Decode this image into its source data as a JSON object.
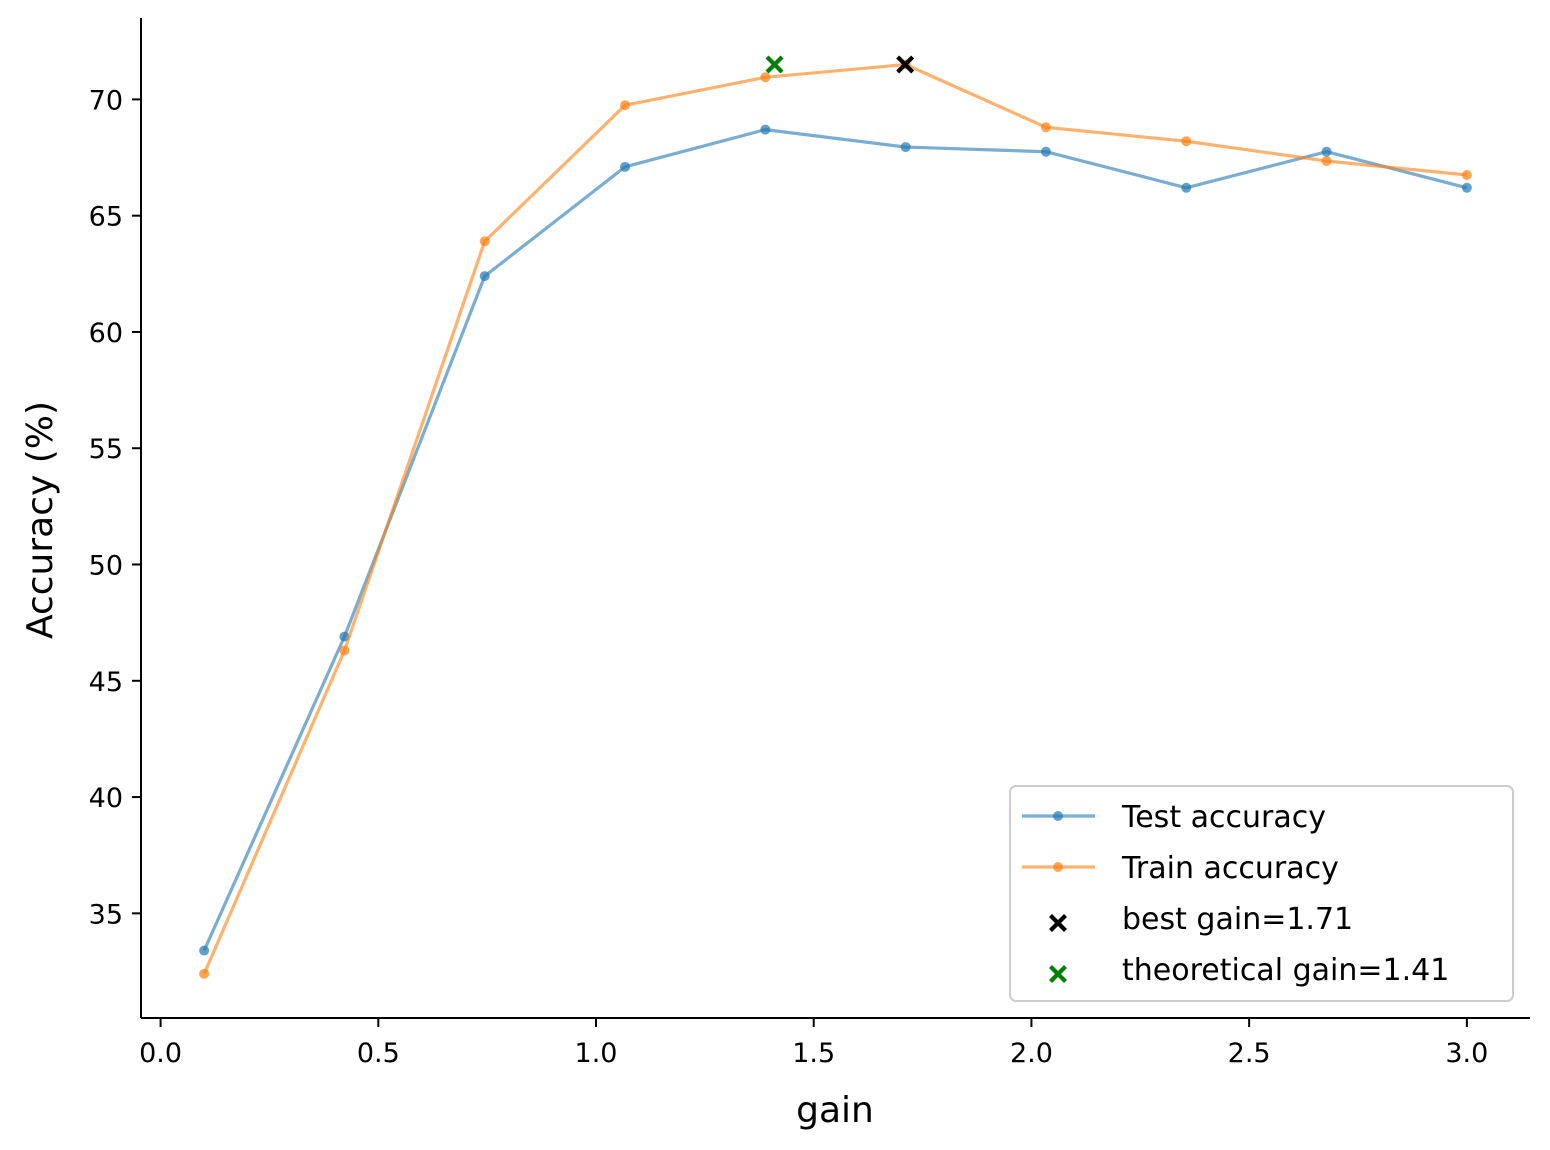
{
  "chart_data": {
    "type": "line",
    "title": "",
    "xlabel": "gain",
    "ylabel": "Accuracy (%)",
    "xlim": [
      -0.045,
      3.145
    ],
    "ylim": [
      30.5,
      73.5
    ],
    "xticks": [
      0.0,
      0.5,
      1.0,
      1.5,
      2.0,
      2.5,
      3.0
    ],
    "xtick_labels": [
      "0.0",
      "0.5",
      "1.0",
      "1.5",
      "2.0",
      "2.5",
      "3.0"
    ],
    "yticks": [
      35,
      40,
      45,
      50,
      55,
      60,
      65,
      70
    ],
    "ytick_labels": [
      "35",
      "40",
      "45",
      "50",
      "55",
      "60",
      "65",
      "70"
    ],
    "grid": false,
    "legend_position": "lower-right",
    "x": [
      0.1,
      0.4222,
      0.7444,
      1.0667,
      1.3889,
      1.7111,
      2.0333,
      2.3556,
      2.6778,
      3.0
    ],
    "series": [
      {
        "name": "Test accuracy",
        "color": "#1f77b4",
        "values": [
          33.4,
          46.9,
          62.4,
          67.1,
          68.7,
          67.95,
          67.75,
          66.2,
          67.75,
          66.2
        ]
      },
      {
        "name": "Train accuracy",
        "color": "#ff7f0e",
        "values": [
          32.4,
          46.3,
          63.9,
          69.75,
          70.95,
          71.5,
          68.8,
          68.2,
          67.35,
          66.75
        ]
      }
    ],
    "markers": [
      {
        "name": "best gain=1.71",
        "x": 1.71,
        "y": 71.5,
        "color": "#000000",
        "symbol": "x"
      },
      {
        "name": "theoretical gain=1.41",
        "x": 1.41,
        "y": 71.5,
        "color": "#008000",
        "symbol": "x"
      }
    ]
  }
}
